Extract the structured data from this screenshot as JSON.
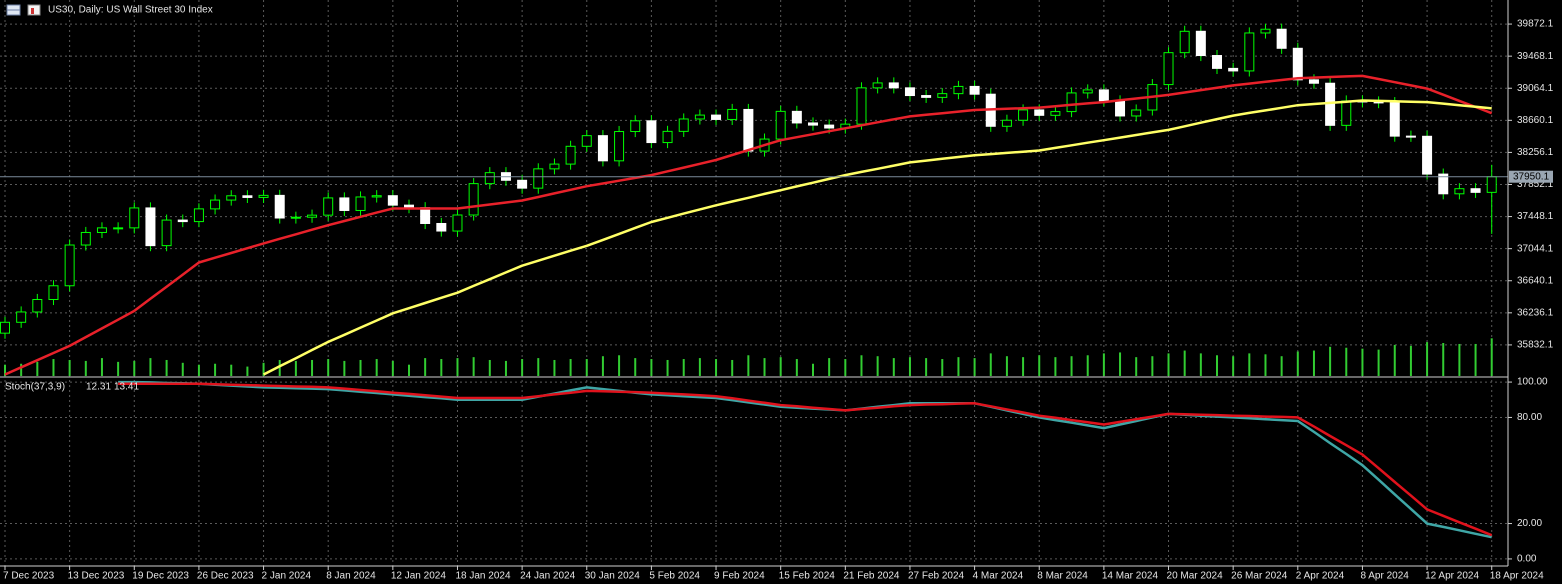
{
  "header": {
    "title": "US30, Daily: US Wall Street 30 Index"
  },
  "chart_data": [
    {
      "type": "candlestick",
      "categories": [
        "7 Dec 2023",
        null,
        null,
        null,
        "13 Dec 2023",
        null,
        null,
        null,
        "19 Dec 2023",
        null,
        null,
        null,
        "26 Dec 2023",
        null,
        null,
        null,
        "2 Jan 2024",
        null,
        null,
        null,
        "8 Jan 2024",
        null,
        null,
        null,
        "12 Jan 2024",
        null,
        null,
        null,
        "18 Jan 2024",
        null,
        null,
        null,
        "24 Jan 2024",
        null,
        null,
        null,
        "30 Jan 2024",
        null,
        null,
        null,
        "5 Feb 2024",
        null,
        null,
        null,
        "9 Feb 2024",
        null,
        null,
        null,
        "15 Feb 2024",
        null,
        null,
        null,
        "21 Feb 2024",
        null,
        null,
        null,
        "27 Feb 2024",
        null,
        null,
        null,
        "4 Mar 2024",
        null,
        null,
        null,
        "8 Mar 2024",
        null,
        null,
        null,
        "14 Mar 2024",
        null,
        null,
        null,
        "20 Mar 2024",
        null,
        null,
        null,
        "26 Mar 2024",
        null,
        null,
        null,
        "2 Apr 2024",
        null,
        null,
        null,
        "8 Apr 2024",
        null,
        null,
        null,
        "12 Apr 2024",
        null,
        null,
        null,
        "18 Apr 2024"
      ],
      "open": [
        35980,
        36117,
        36247,
        36404,
        36577,
        37090,
        37248,
        37306,
        37306,
        37557,
        37082,
        37404,
        37385,
        37545,
        37656,
        37710,
        37689,
        37715,
        37430,
        37440,
        37466,
        37683,
        37525,
        37695,
        37711,
        37592,
        37560,
        37361,
        37266,
        37468,
        37863,
        38001,
        37905,
        37806,
        38049,
        38109,
        38333,
        38467,
        38150,
        38519,
        38654,
        38380,
        38521,
        38677,
        38726,
        38671,
        38797,
        38273,
        38424,
        38773,
        38627,
        38600,
        38563,
        38612,
        39069,
        39131,
        39069,
        38972,
        38949,
        38996,
        39087,
        38989,
        38585,
        38661,
        38791,
        38723,
        38770,
        39005,
        39043,
        38905,
        38715,
        38790,
        39110,
        39512,
        39781,
        39476,
        39314,
        39282,
        39760,
        39807,
        39567,
        39170,
        39127,
        38597,
        38904,
        38892,
        38883,
        38461,
        38459,
        37983,
        37735,
        37799,
        37753
      ],
      "high": [
        36187,
        36317,
        36474,
        36647,
        37160,
        37318,
        37376,
        37376,
        37627,
        37627,
        37474,
        37474,
        37615,
        37726,
        37780,
        37780,
        37785,
        37785,
        37510,
        37536,
        37753,
        37753,
        37765,
        37781,
        37781,
        37662,
        37630,
        37431,
        37538,
        37933,
        38071,
        38071,
        37975,
        38119,
        38179,
        38403,
        38537,
        38537,
        38589,
        38724,
        38724,
        38591,
        38747,
        38796,
        38796,
        38867,
        38867,
        38494,
        38843,
        38843,
        38697,
        38670,
        38682,
        39139,
        39201,
        39201,
        39139,
        39042,
        39066,
        39157,
        39157,
        39059,
        38731,
        38861,
        38861,
        38840,
        39075,
        39113,
        39113,
        38975,
        38860,
        39180,
        39582,
        39851,
        39851,
        39546,
        39384,
        39830,
        39877,
        39877,
        39637,
        39240,
        39197,
        38974,
        38974,
        38962,
        38953,
        38531,
        38529,
        38053,
        37869,
        37869,
        38100
      ],
      "low": [
        35910,
        36047,
        36177,
        36334,
        36507,
        37020,
        37178,
        37236,
        37236,
        37012,
        37012,
        37315,
        37315,
        37475,
        37586,
        37619,
        37619,
        37360,
        37360,
        37370,
        37396,
        37455,
        37455,
        37625,
        37522,
        37490,
        37291,
        37196,
        37196,
        37398,
        37793,
        37835,
        37736,
        37736,
        37979,
        38039,
        38263,
        38080,
        38080,
        38449,
        38310,
        38310,
        38451,
        38607,
        38601,
        38601,
        38203,
        38203,
        38354,
        38557,
        38530,
        38493,
        38493,
        38542,
        38999,
        38999,
        38902,
        38879,
        38879,
        38926,
        38919,
        38515,
        38515,
        38591,
        38653,
        38653,
        38700,
        38935,
        38835,
        38645,
        38645,
        38720,
        39040,
        39442,
        39406,
        39244,
        39212,
        39212,
        39690,
        39497,
        39100,
        39057,
        38527,
        38527,
        38822,
        38813,
        38391,
        38389,
        37913,
        37665,
        37665,
        37683,
        37230
      ],
      "close": [
        36117,
        36247,
        36404,
        36577,
        37090,
        37248,
        37306,
        37306,
        37557,
        37082,
        37404,
        37385,
        37545,
        37656,
        37710,
        37689,
        37715,
        37430,
        37440,
        37466,
        37683,
        37525,
        37695,
        37711,
        37592,
        37560,
        37361,
        37266,
        37468,
        37863,
        38001,
        37905,
        37806,
        38049,
        38109,
        38333,
        38467,
        38150,
        38519,
        38654,
        38380,
        38521,
        38677,
        38726,
        38671,
        38797,
        38273,
        38424,
        38773,
        38627,
        38600,
        38563,
        38612,
        39069,
        39131,
        39069,
        38972,
        38949,
        38996,
        39087,
        38989,
        38585,
        38661,
        38791,
        38723,
        38770,
        39005,
        39043,
        38905,
        38715,
        38790,
        39110,
        39512,
        39781,
        39476,
        39314,
        39282,
        39760,
        39807,
        39567,
        39170,
        39127,
        38597,
        38904,
        38892,
        38883,
        38461,
        38459,
        37983,
        37735,
        37799,
        37753,
        37950.1
      ],
      "bull_color": "#00ff00",
      "bear_color": "#ffffff",
      "body_bull_fill": "#000000",
      "overlays": [
        {
          "color": "#e8212a",
          "values": [
            35460,
            35550,
            35640,
            35730,
            35820,
            35930,
            36040,
            36150,
            36260,
            36413,
            36565,
            36718,
            36870,
            36930,
            36990,
            37050,
            37110,
            37168,
            37225,
            37283,
            37340,
            37393,
            37445,
            37498,
            37550,
            37550,
            37550,
            37550,
            37550,
            37575,
            37600,
            37625,
            37650,
            37695,
            37740,
            37785,
            37830,
            37865,
            37900,
            37935,
            37970,
            38018,
            38065,
            38113,
            38160,
            38223,
            38285,
            38348,
            38410,
            38448,
            38485,
            38523,
            38560,
            38598,
            38635,
            38673,
            38710,
            38730,
            38750,
            38770,
            38790,
            38798,
            38805,
            38813,
            38820,
            38838,
            38855,
            38873,
            38890,
            38913,
            38935,
            38958,
            38980,
            39010,
            39040,
            39070,
            39100,
            39123,
            39145,
            39168,
            39190,
            39198,
            39205,
            39213,
            39220,
            39180,
            39140,
            39100,
            39060,
            38983,
            38905,
            38828,
            38750
          ]
        },
        {
          "color": "#ffff66",
          "values": [
            null,
            null,
            null,
            null,
            null,
            null,
            null,
            null,
            null,
            null,
            null,
            null,
            null,
            null,
            null,
            null,
            35460,
            35563,
            35665,
            35768,
            35870,
            35960,
            36050,
            36140,
            36230,
            36295,
            36360,
            36425,
            36490,
            36575,
            36660,
            36745,
            36830,
            36893,
            36955,
            37018,
            37080,
            37155,
            37230,
            37305,
            37380,
            37433,
            37485,
            37538,
            37590,
            37638,
            37685,
            37733,
            37780,
            37828,
            37875,
            37923,
            37970,
            38010,
            38050,
            38090,
            38130,
            38153,
            38175,
            38198,
            38220,
            38235,
            38250,
            38265,
            38280,
            38313,
            38345,
            38378,
            38410,
            38443,
            38475,
            38508,
            38540,
            38585,
            38630,
            38675,
            38720,
            38753,
            38785,
            38818,
            38850,
            38865,
            38880,
            38895,
            38910,
            38905,
            38900,
            38895,
            38890,
            38870,
            38850,
            38830,
            38810
          ]
        }
      ],
      "volume": {
        "color": "#32cd32",
        "ylim": [
          0,
          400000
        ],
        "values": [
          12000,
          13000,
          15000,
          18000,
          17000,
          16000,
          19000,
          15000,
          16000,
          19000,
          17000,
          14000,
          12000,
          13000,
          12000,
          10000,
          14000,
          17000,
          16000,
          17000,
          18000,
          16000,
          17000,
          18000,
          16000,
          12000,
          19000,
          18000,
          19000,
          20000,
          17000,
          16000,
          18000,
          19000,
          17000,
          18000,
          18000,
          21000,
          22000,
          19000,
          18000,
          17000,
          18000,
          19000,
          18000,
          17000,
          22000,
          19000,
          20000,
          18000,
          13000,
          19000,
          18000,
          22000,
          21000,
          19000,
          20000,
          19000,
          18000,
          20000,
          19000,
          24000,
          21000,
          20000,
          22000,
          20000,
          21000,
          22000,
          24000,
          25000,
          20000,
          21000,
          24000,
          27000,
          24000,
          22000,
          21000,
          24000,
          23000,
          21000,
          26000,
          27000,
          31000,
          30000,
          29000,
          28000,
          33000,
          32000,
          36000,
          35000,
          34000,
          34000,
          40000
        ]
      },
      "ylim": [
        35428.1,
        40175.1
      ],
      "yticks": [
        35832.1,
        36236.1,
        36640.1,
        37044.1,
        37448.1,
        37852.1,
        38256.1,
        38660.1,
        39064.1,
        39468.1,
        39872.1
      ],
      "grid": true
    },
    {
      "type": "line",
      "title": "Stoch(37,3,9)",
      "series": [
        {
          "color": "#3fa6a6",
          "values": [
            null,
            null,
            null,
            null,
            null,
            null,
            null,
            100,
            100,
            99.8,
            99.5,
            99.3,
            99,
            98.5,
            98,
            97.5,
            97,
            96.8,
            96.5,
            96.3,
            96,
            95.3,
            94.5,
            93.8,
            93,
            92.3,
            91.5,
            90.8,
            90,
            90,
            90,
            90,
            90,
            91.8,
            93.5,
            95.3,
            97,
            96,
            95,
            94,
            93,
            92.5,
            92,
            91.5,
            91,
            89.8,
            88.5,
            87.3,
            86,
            85.5,
            85,
            84.5,
            84,
            85,
            86,
            87,
            88,
            88,
            88,
            88,
            88,
            86,
            84,
            82,
            80,
            78.5,
            77,
            75.5,
            74,
            76,
            78,
            80,
            82,
            81.5,
            81,
            80.5,
            80,
            79.5,
            79,
            78.5,
            78,
            71.8,
            65.5,
            59.3,
            53,
            44.8,
            36.5,
            28.3,
            20,
            18.1,
            16.2,
            14.2,
            12.31
          ]
        },
        {
          "color": "#e0121c",
          "values": [
            null,
            null,
            null,
            null,
            null,
            null,
            null,
            99,
            99,
            99,
            99,
            99,
            99,
            98.8,
            98.5,
            98.3,
            98,
            97.8,
            97.5,
            97.3,
            97,
            96.3,
            95.5,
            94.8,
            94,
            93.3,
            92.5,
            91.8,
            91,
            91,
            91,
            91,
            91,
            92,
            93,
            94,
            95,
            94.8,
            94.5,
            94.3,
            94,
            93.5,
            93,
            92.5,
            92,
            90.8,
            89.5,
            88.3,
            87,
            86.3,
            85.5,
            84.8,
            84,
            84.8,
            85.5,
            86.3,
            87,
            87.3,
            87.5,
            87.8,
            88,
            86.3,
            84.5,
            82.8,
            81,
            79.8,
            78.5,
            77.3,
            76,
            77.5,
            79,
            80.5,
            82,
            81.8,
            81.5,
            81.3,
            81,
            80.8,
            80.5,
            80.3,
            80,
            74.8,
            69.5,
            64.3,
            59,
            51.3,
            43.5,
            35.8,
            28,
            24.4,
            20.7,
            17.1,
            13.41
          ]
        }
      ],
      "ylim": [
        -4.0,
        102.3
      ],
      "yticks": [
        {
          "value": 0,
          "label": "0.00"
        },
        {
          "value": 20,
          "label": "20.00"
        },
        {
          "value": 80,
          "label": "80.00"
        },
        {
          "value": 100,
          "label": "100.00"
        }
      ],
      "grid": true
    }
  ]
}
